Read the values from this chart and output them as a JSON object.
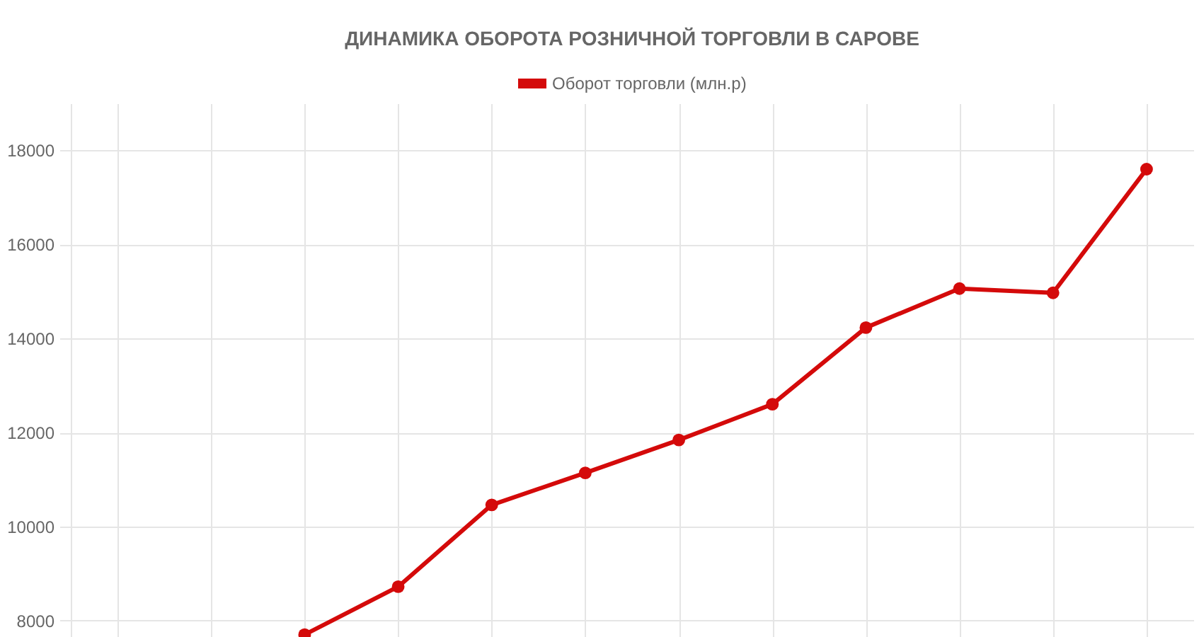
{
  "chart_data": {
    "type": "line",
    "title": "ДИНАМИКА ОБОРОТА РОЗНИЧНОЙ ТОРГОВЛИ В САРОВЕ",
    "categories": [
      null,
      null,
      null,
      null,
      null,
      null,
      null,
      null,
      null,
      null,
      null,
      null
    ],
    "series": [
      {
        "name": "Оборот торговли (млн.р)",
        "color": "#d40a0a",
        "values": [
          null,
          null,
          7700,
          8720,
          10460,
          11140,
          11840,
          12600,
          14230,
          15060,
          14970,
          17600
        ]
      }
    ],
    "ylim": [
      7650,
      19000
    ],
    "yticks": [
      8000,
      10000,
      12000,
      14000,
      16000,
      18000
    ],
    "grid": true,
    "legend": "top",
    "marker": "circle",
    "line_style": "solid",
    "tick_labels": "y"
  }
}
